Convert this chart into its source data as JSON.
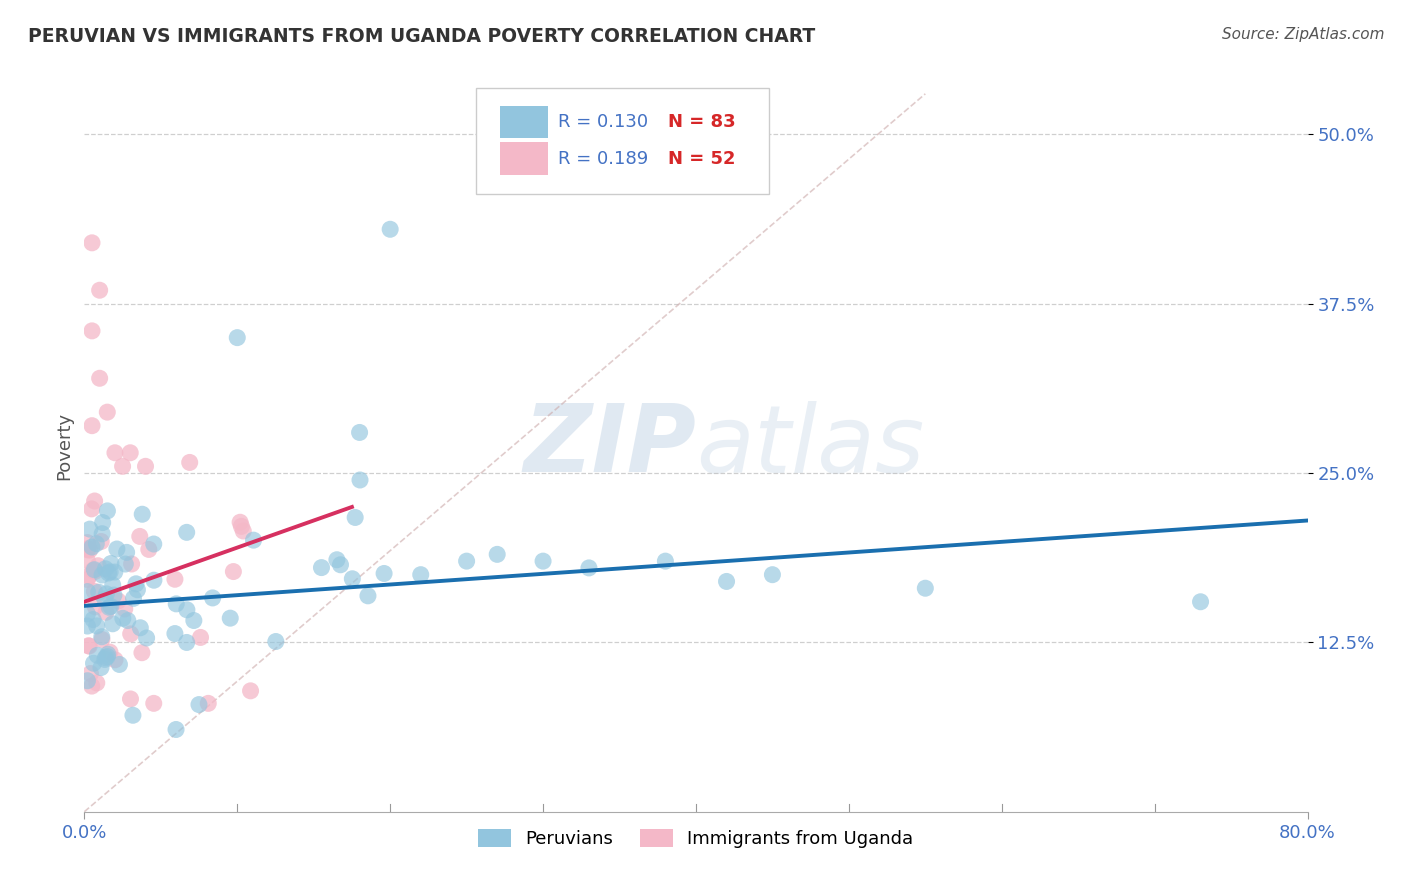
{
  "title": "PERUVIAN VS IMMIGRANTS FROM UGANDA POVERTY CORRELATION CHART",
  "source": "Source: ZipAtlas.com",
  "ylabel": "Poverty",
  "xlim": [
    0.0,
    0.8
  ],
  "ylim": [
    0.0,
    0.54
  ],
  "xticks": [
    0.0,
    0.8
  ],
  "xtick_labels": [
    "0.0%",
    "80.0%"
  ],
  "yticks": [
    0.125,
    0.25,
    0.375,
    0.5
  ],
  "ytick_labels": [
    "12.5%",
    "25.0%",
    "37.5%",
    "50.0%"
  ],
  "blue_color": "#92c5de",
  "pink_color": "#f4b8c8",
  "blue_line_color": "#1a6faf",
  "pink_line_color": "#d63060",
  "legend_label_blue": "Peruvians",
  "legend_label_pink": "Immigrants from Uganda",
  "watermark_zip": "ZIP",
  "watermark_atlas": "atlas",
  "grid_color": "#bbbbbb",
  "background_color": "#ffffff",
  "blue_line_x0": 0.0,
  "blue_line_y0": 0.152,
  "blue_line_x1": 0.8,
  "blue_line_y1": 0.215,
  "pink_line_x0": 0.0,
  "pink_line_y0": 0.155,
  "pink_line_x1": 0.175,
  "pink_line_y1": 0.225,
  "dash_line_x0": 0.0,
  "dash_line_y0": 0.0,
  "dash_line_x1": 0.55,
  "dash_line_y1": 0.53
}
